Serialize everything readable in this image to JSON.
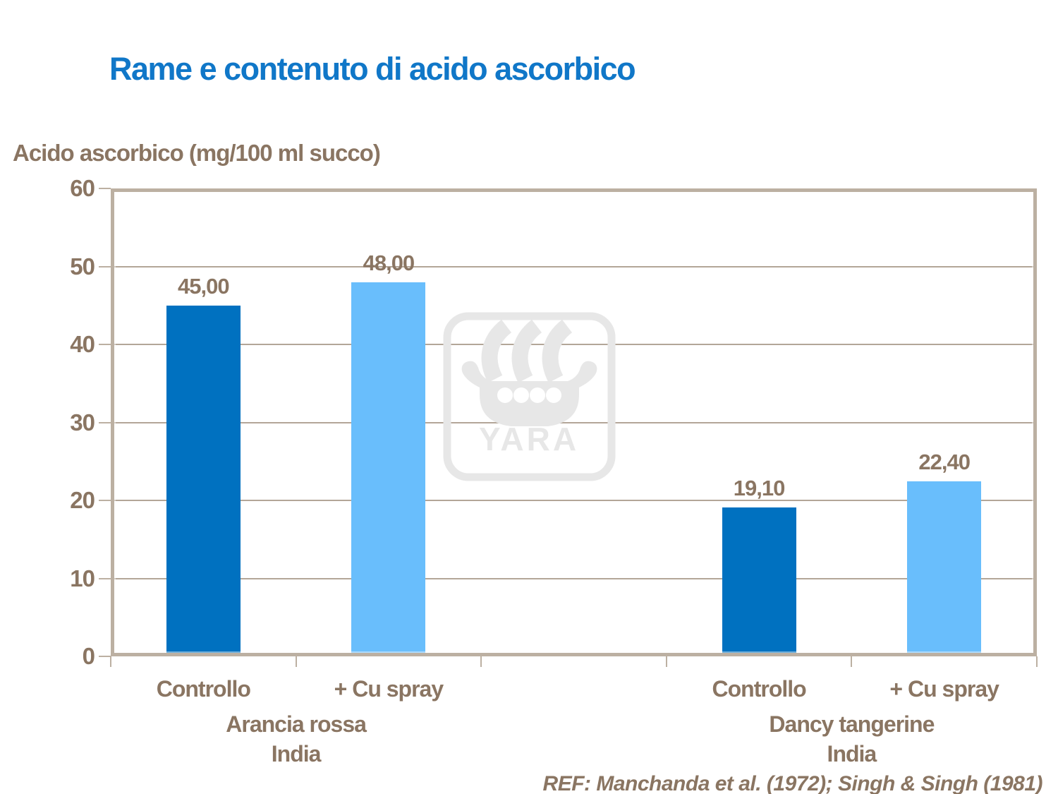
{
  "title": "Rame e contenuto di acido ascorbico",
  "y_axis_title": "Acido ascorbico (mg/100 ml succo)",
  "reference": "REF: Manchanda et al. (1972); Singh & Singh (1981)",
  "watermark": {
    "name": "yara-logo",
    "text": "YARA"
  },
  "colors": {
    "title_blue": "#1077C8",
    "text_brown": "#8A7562",
    "axis_tan": "#BCB0A2",
    "gridline": "#B3A698",
    "bar_dark_blue": "#0071C0",
    "bar_light_blue": "#69BEFC",
    "watermark_gray": "#E7E7E7",
    "background": "#FFFFFF"
  },
  "chart_data": {
    "type": "bar",
    "title": "Rame e contenuto di acido ascorbico",
    "ylabel": "Acido ascorbico (mg/100 ml succo)",
    "xlabel": "",
    "ylim": [
      0,
      60
    ],
    "yticks": [
      0,
      10,
      20,
      30,
      40,
      50,
      60
    ],
    "grid": true,
    "legend": "none",
    "slot_count": 5,
    "bars": [
      {
        "slot": 0,
        "category": "Controllo",
        "value": 45.0,
        "value_label": "45,00",
        "color_key": "bar_dark_blue",
        "group": "Arancia rossa India"
      },
      {
        "slot": 1,
        "category": "+ Cu spray",
        "value": 48.0,
        "value_label": "48,00",
        "color_key": "bar_light_blue",
        "group": "Arancia rossa India"
      },
      {
        "slot": 3,
        "category": "Controllo",
        "value": 19.1,
        "value_label": "19,10",
        "color_key": "bar_dark_blue",
        "group": "Dancy tangerine India"
      },
      {
        "slot": 4,
        "category": "+ Cu spray",
        "value": 22.4,
        "value_label": "22,40",
        "color_key": "bar_light_blue",
        "group": "Dancy tangerine India"
      }
    ],
    "groups": [
      {
        "line1": "Arancia rossa",
        "line2": "India",
        "slots": [
          0,
          1
        ]
      },
      {
        "line1": "Dancy tangerine",
        "line2": "India",
        "slots": [
          3,
          4
        ]
      }
    ]
  }
}
